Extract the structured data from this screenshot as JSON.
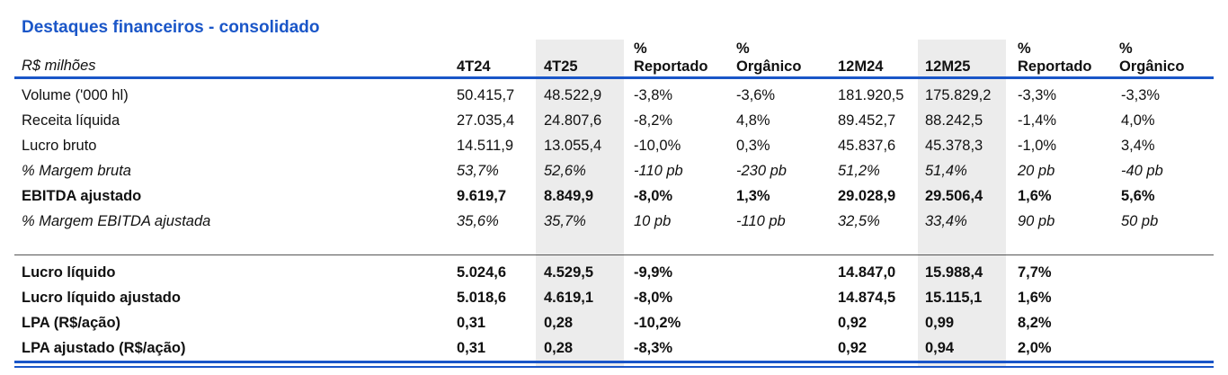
{
  "title": "Destaques financeiros - consolidado",
  "unit_label": "R$ milhões",
  "headers": {
    "q24": "4T24",
    "q25": "4T25",
    "pct_rep_1": "%",
    "pct_rep_2": "Reportado",
    "pct_org_1": "%",
    "pct_org_2": "Orgânico",
    "y24": "12M24",
    "y25": "12M25",
    "pct_rep_y_1": "%",
    "pct_rep_y_2": "Reportado",
    "pct_org_y_1": "%",
    "pct_org_y_2": "Orgânico"
  },
  "rows_top": [
    {
      "label": "Volume ('000 hl)",
      "q24": "50.415,7",
      "q25": "48.522,9",
      "rep": "-3,8%",
      "org": "-3,6%",
      "y24": "181.920,5",
      "y25": "175.829,2",
      "rep_y": "-3,3%",
      "org_y": "-3,3%"
    },
    {
      "label": "Receita líquida",
      "q24": "27.035,4",
      "q25": "24.807,6",
      "rep": "-8,2%",
      "org": "4,8%",
      "y24": "89.452,7",
      "y25": "88.242,5",
      "rep_y": "-1,4%",
      "org_y": "4,0%"
    },
    {
      "label": "Lucro bruto",
      "q24": "14.511,9",
      "q25": "13.055,4",
      "rep": "-10,0%",
      "org": "0,3%",
      "y24": "45.837,6",
      "y25": "45.378,3",
      "rep_y": "-1,0%",
      "org_y": "3,4%"
    },
    {
      "label": "% Margem bruta",
      "q24": "53,7%",
      "q25": "52,6%",
      "rep": "-110 pb",
      "org": "-230 pb",
      "y24": "51,2%",
      "y25": "51,4%",
      "rep_y": "20 pb",
      "org_y": "-40 pb"
    },
    {
      "label": "EBITDA ajustado",
      "q24": "9.619,7",
      "q25": "8.849,9",
      "rep": "-8,0%",
      "org": "1,3%",
      "y24": "29.028,9",
      "y25": "29.506,4",
      "rep_y": "1,6%",
      "org_y": "5,6%"
    },
    {
      "label": "% Margem EBITDA ajustada",
      "q24": "35,6%",
      "q25": "35,7%",
      "rep": "10 pb",
      "org": "-110 pb",
      "y24": "32,5%",
      "y25": "33,4%",
      "rep_y": "90 pb",
      "org_y": "50 pb"
    }
  ],
  "rows_bottom": [
    {
      "label": "Lucro líquido",
      "q24": "5.024,6",
      "q25": "4.529,5",
      "rep": "-9,9%",
      "org": "",
      "y24": "14.847,0",
      "y25": "15.988,4",
      "rep_y": "7,7%",
      "org_y": ""
    },
    {
      "label": "Lucro líquido ajustado",
      "q24": "5.018,6",
      "q25": "4.619,1",
      "rep": "-8,0%",
      "org": "",
      "y24": "14.874,5",
      "y25": "15.115,1",
      "rep_y": "1,6%",
      "org_y": ""
    },
    {
      "label": "LPA (R$/ação)",
      "q24": "0,31",
      "q25": "0,28",
      "rep": "-10,2%",
      "org": "",
      "y24": "0,92",
      "y25": "0,99",
      "rep_y": "8,2%",
      "org_y": ""
    },
    {
      "label": "LPA ajustado (R$/ação)",
      "q24": "0,31",
      "q25": "0,28",
      "rep": "-8,3%",
      "org": "",
      "y24": "0,92",
      "y25": "0,94",
      "rep_y": "2,0%",
      "org_y": ""
    }
  ],
  "colors": {
    "title": "#1a56c8",
    "rule": "#1a56c8",
    "shade": "#ececec"
  }
}
